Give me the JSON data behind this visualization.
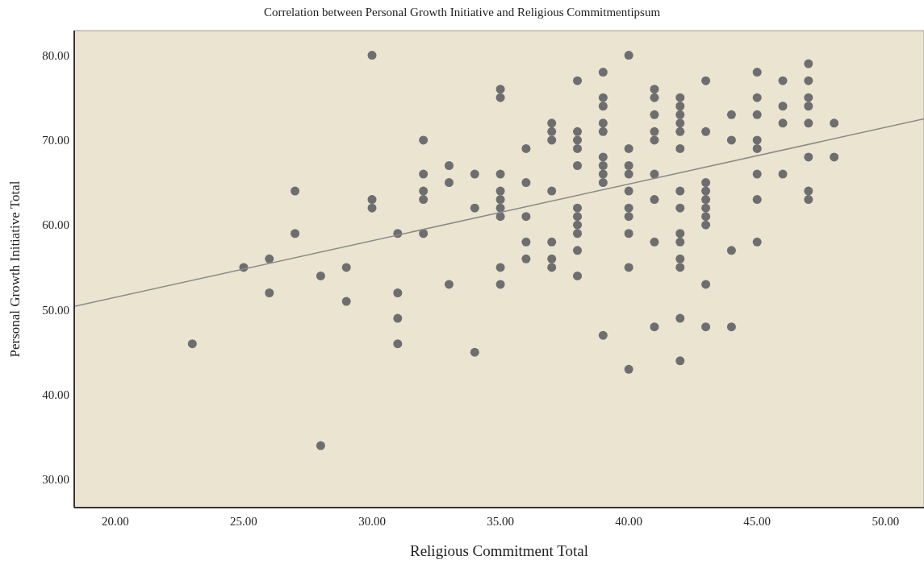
{
  "chart_data": {
    "type": "scatter",
    "title": "Correlation between Personal Growth Initiative and Religious Commitmentipsum",
    "xlabel": "Religious Commitment Total",
    "ylabel": "Personal Growth Initiative Total",
    "xlim": [
      18.4,
      51.5
    ],
    "ylim": [
      26.7,
      82.9
    ],
    "xticks": [
      {
        "value": 20,
        "label": "20.00"
      },
      {
        "value": 25,
        "label": "25.00"
      },
      {
        "value": 30,
        "label": "30.00"
      },
      {
        "value": 35,
        "label": "35.00"
      },
      {
        "value": 40,
        "label": "40.00"
      },
      {
        "value": 45,
        "label": "45.00"
      },
      {
        "value": 50,
        "label": "50.00"
      }
    ],
    "yticks": [
      {
        "value": 30,
        "label": "30.00"
      },
      {
        "value": 40,
        "label": "40.00"
      },
      {
        "value": 50,
        "label": "50.00"
      },
      {
        "value": 60,
        "label": "60.00"
      },
      {
        "value": 70,
        "label": "70.00"
      },
      {
        "value": 80,
        "label": "80.00"
      }
    ],
    "grid": false,
    "series": [
      {
        "color": "#6e6e70",
        "marker": "circle",
        "x": [
          23,
          25,
          26,
          26,
          27,
          27,
          28,
          28,
          29,
          29,
          30,
          30,
          30,
          31,
          31,
          31,
          31,
          32,
          32,
          32,
          32,
          32,
          33,
          33,
          33,
          34,
          34,
          34,
          35,
          35,
          35,
          35,
          35,
          35,
          35,
          35,
          35,
          36,
          36,
          36,
          36,
          36,
          37,
          37,
          37,
          37,
          37,
          37,
          37,
          38,
          38,
          38,
          38,
          38,
          38,
          38,
          38,
          38,
          38,
          38,
          39,
          39,
          39,
          39,
          39,
          39,
          39,
          39,
          39,
          39,
          40,
          40,
          40,
          40,
          40,
          40,
          40,
          40,
          40,
          40,
          41,
          41,
          41,
          41,
          41,
          41,
          41,
          41,
          41,
          42,
          42,
          42,
          42,
          42,
          42,
          42,
          42,
          42,
          42,
          42,
          42,
          42,
          42,
          43,
          43,
          43,
          43,
          43,
          43,
          43,
          43,
          43,
          43,
          44,
          44,
          44,
          44,
          45,
          45,
          45,
          45,
          45,
          45,
          45,
          45,
          46,
          46,
          46,
          46,
          47,
          47,
          47,
          47,
          47,
          47,
          47,
          47,
          48,
          48
        ],
        "values": [
          46,
          55,
          56,
          52,
          64,
          59,
          54,
          34,
          55,
          51,
          80,
          63,
          62,
          59,
          52,
          49,
          46,
          70,
          66,
          64,
          63,
          59,
          67,
          65,
          53,
          66,
          62,
          45,
          76,
          75,
          66,
          64,
          63,
          62,
          61,
          55,
          53,
          69,
          65,
          61,
          58,
          56,
          72,
          71,
          70,
          64,
          58,
          56,
          55,
          77,
          71,
          70,
          69,
          67,
          62,
          61,
          60,
          59,
          57,
          54,
          78,
          75,
          74,
          72,
          71,
          68,
          67,
          66,
          65,
          47,
          80,
          69,
          67,
          66,
          64,
          62,
          61,
          59,
          55,
          43,
          76,
          75,
          73,
          71,
          70,
          66,
          63,
          58,
          48,
          75,
          74,
          73,
          72,
          71,
          69,
          64,
          62,
          59,
          58,
          56,
          55,
          49,
          44,
          77,
          71,
          65,
          64,
          63,
          62,
          61,
          60,
          53,
          48,
          73,
          70,
          57,
          48,
          78,
          75,
          73,
          70,
          69,
          66,
          63,
          58,
          77,
          74,
          72,
          66,
          79,
          77,
          75,
          74,
          72,
          68,
          64,
          63,
          72,
          68
        ]
      },
      {
        "type": "line",
        "color": "#8a8a8a",
        "marker": "none",
        "line_style": "solid",
        "x": [
          18.4,
          51.5
        ],
        "values": [
          50.4,
          72.5
        ]
      }
    ]
  }
}
